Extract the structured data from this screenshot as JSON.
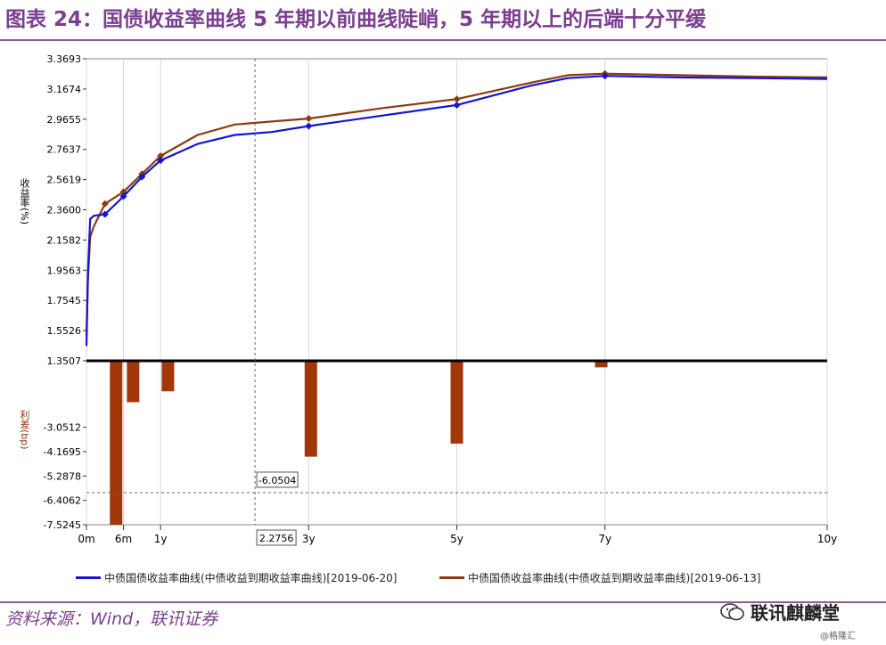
{
  "header": {
    "title": "图表 24：国债收益率曲线 5 年期以前曲线陡峭，5 年期以上的后端十分平缓"
  },
  "footer": {
    "source": "资料来源：Wind，联讯证券",
    "brand": "联讯麒麟堂",
    "sub_brand": "@格隆汇"
  },
  "colors": {
    "series_0620": "#1414d2",
    "series_0613": "#8b3a12",
    "bar": "#a0380a",
    "title": "#7a3f8f"
  },
  "chart_data": [
    {
      "type": "line",
      "ylabel": "收益率(%)",
      "yticks": [
        3.3693,
        3.1674,
        2.9655,
        2.7637,
        2.5619,
        2.36,
        2.1582,
        1.9563,
        1.7545,
        1.5526,
        1.3507
      ],
      "ylim": [
        1.3507,
        3.3693
      ],
      "xlim": [
        0,
        10
      ],
      "xticks": [
        {
          "label": "0m",
          "value": 0
        },
        {
          "label": "6m",
          "value": 0.5
        },
        {
          "label": "1y",
          "value": 1
        },
        {
          "label": "3y",
          "value": 3
        },
        {
          "label": "5y",
          "value": 5
        },
        {
          "label": "7y",
          "value": 7
        },
        {
          "label": "10y",
          "value": 10
        }
      ],
      "series": [
        {
          "name": "中债国债收益率曲线(中债收益到期收益率曲线)[2019-06-20]",
          "x": [
            0,
            0.02,
            0.05,
            0.1,
            0.25,
            0.5,
            0.75,
            1.0,
            1.5,
            2.0,
            2.5,
            3.0,
            4.0,
            5.0,
            6.0,
            6.5,
            7.0,
            8.0,
            9.0,
            10.0
          ],
          "y": [
            1.45,
            1.95,
            2.3,
            2.32,
            2.33,
            2.45,
            2.58,
            2.69,
            2.8,
            2.86,
            2.88,
            2.92,
            2.99,
            3.06,
            3.19,
            3.24,
            3.255,
            3.245,
            3.24,
            3.235
          ]
        },
        {
          "name": "中债国债收益率曲线(中债收益到期收益率曲线)[2019-06-13]",
          "x": [
            0,
            0.02,
            0.05,
            0.1,
            0.25,
            0.5,
            0.75,
            1.0,
            1.5,
            2.0,
            2.5,
            3.0,
            4.0,
            5.0,
            6.0,
            6.5,
            7.0,
            8.0,
            9.0,
            10.0
          ],
          "y": [
            1.52,
            1.9,
            2.18,
            2.25,
            2.4,
            2.48,
            2.6,
            2.72,
            2.86,
            2.93,
            2.95,
            2.97,
            3.04,
            3.1,
            3.21,
            3.26,
            3.27,
            3.26,
            3.25,
            3.245
          ]
        }
      ]
    },
    {
      "type": "bar",
      "ylabel": "利差(bp)",
      "yticks": [
        -3.0512,
        -4.1695,
        -5.2878,
        -6.4062,
        -7.5245
      ],
      "ylim": [
        -7.5245,
        0
      ],
      "x": [
        0.4,
        0.63,
        1.1,
        3.03,
        5.0,
        6.95
      ],
      "values": [
        -7.5245,
        -1.9,
        -1.4,
        -4.4,
        -3.8,
        -0.3
      ]
    }
  ],
  "annotations": {
    "crosshair_value": "-6.0504",
    "crosshair_x": "2.2756"
  }
}
